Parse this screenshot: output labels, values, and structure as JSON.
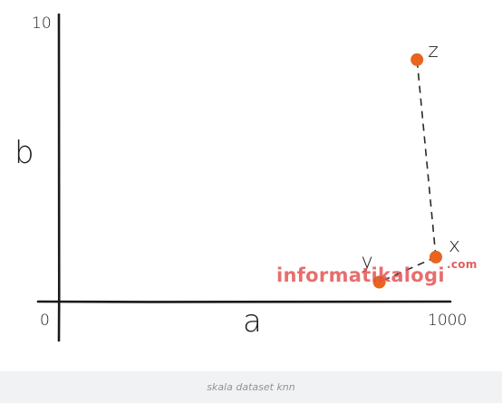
{
  "chart_data": {
    "type": "scatter",
    "xlabel": "a",
    "ylabel": "b",
    "xlim": [
      0,
      1000
    ],
    "ylim": [
      0,
      10
    ],
    "x_ticks": [
      "0",
      "1000"
    ],
    "y_ticks": [
      "10"
    ],
    "points": [
      {
        "label": "x",
        "x": 1000,
        "y": 1.6
      },
      {
        "label": "y",
        "x": 850,
        "y": 0.7
      },
      {
        "label": "z",
        "x": 950,
        "y": 8.7
      }
    ],
    "dashed_links": [
      [
        "x",
        "y"
      ],
      [
        "x",
        "z"
      ]
    ],
    "grid": false,
    "colors": {
      "point": "#e8641f",
      "ink": "#1a1a1a"
    }
  },
  "watermark": {
    "main": "informatikalogi",
    "suffix": ".com"
  },
  "caption": "skala dataset knn"
}
